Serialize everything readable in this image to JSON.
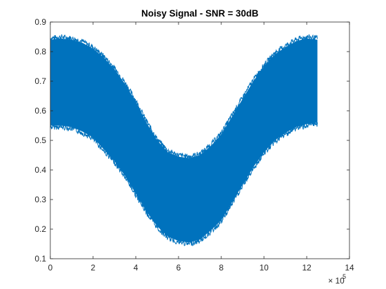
{
  "chart_data": {
    "type": "area",
    "title": "Noisy Signal - SNR = 30dB",
    "xlabel": "",
    "ylabel": "",
    "xlim": [
      0,
      14
    ],
    "ylim": [
      0.1,
      0.9
    ],
    "x_exponent_label": "× 10",
    "x_exponent_power": "5",
    "x_ticks": [
      "0",
      "2",
      "4",
      "6",
      "8",
      "10",
      "12",
      "14"
    ],
    "y_ticks": [
      "0.1",
      "0.2",
      "0.3",
      "0.4",
      "0.5",
      "0.6",
      "0.7",
      "0.8",
      "0.9"
    ],
    "grid": false,
    "series_color": "#0072BD",
    "series": [
      {
        "x": [
          0,
          0.5,
          1,
          1.5,
          2,
          2.5,
          3,
          3.5,
          4,
          4.5,
          5,
          5.5,
          6,
          6.5,
          7,
          7.5,
          8,
          8.5,
          9,
          9.5,
          10,
          10.5,
          11,
          11.5,
          12,
          12.5
        ],
        "upper": [
          0.84,
          0.845,
          0.84,
          0.83,
          0.81,
          0.78,
          0.74,
          0.69,
          0.63,
          0.56,
          0.5,
          0.46,
          0.445,
          0.44,
          0.45,
          0.48,
          0.52,
          0.58,
          0.64,
          0.7,
          0.75,
          0.79,
          0.815,
          0.835,
          0.845,
          0.84
        ],
        "lower": [
          0.55,
          0.55,
          0.545,
          0.53,
          0.51,
          0.47,
          0.43,
          0.38,
          0.32,
          0.26,
          0.21,
          0.175,
          0.16,
          0.155,
          0.165,
          0.195,
          0.23,
          0.29,
          0.35,
          0.41,
          0.46,
          0.5,
          0.525,
          0.545,
          0.555,
          0.56
        ]
      }
    ]
  }
}
